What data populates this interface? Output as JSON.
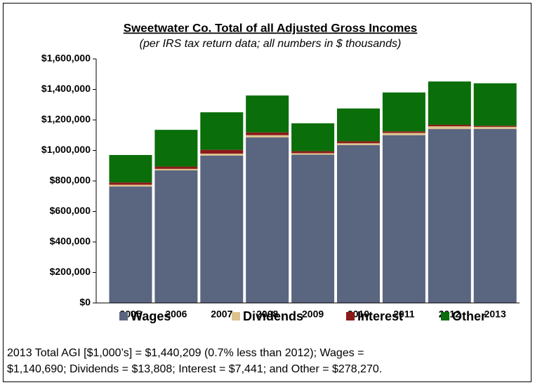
{
  "chart_data": {
    "type": "stacked_bar",
    "title": "Sweetwater Co. Total of all Adjusted Gross Incomes",
    "subtitle": "(per  IRS tax return data; all numbers in $ thousands)",
    "categories": [
      "2005",
      "2006",
      "2007",
      "2008",
      "2009",
      "2010",
      "2011",
      "2012",
      "2013"
    ],
    "series": [
      {
        "name": "Wages",
        "color": "#5a6580",
        "values": [
          763000,
          869000,
          966000,
          1085000,
          972000,
          1035000,
          1100000,
          1140000,
          1140690
        ]
      },
      {
        "name": "Dividends",
        "color": "#dcc28e",
        "values": [
          12000,
          10000,
          13000,
          15000,
          10000,
          12000,
          15000,
          18000,
          13808
        ]
      },
      {
        "name": "Interest",
        "color": "#8b1a1a",
        "values": [
          15000,
          15000,
          25000,
          18000,
          13000,
          13000,
          10000,
          10000,
          7441
        ]
      },
      {
        "name": "Other",
        "color": "#0a6e0a",
        "values": [
          180000,
          241000,
          246000,
          242000,
          183000,
          215000,
          255000,
          284000,
          278270
        ]
      }
    ],
    "ylim": [
      0,
      1600000
    ],
    "yticks": [
      {
        "value": 0,
        "label": "$0"
      },
      {
        "value": 200000,
        "label": "$200,000"
      },
      {
        "value": 400000,
        "label": "$400,000"
      },
      {
        "value": 600000,
        "label": "$600,000"
      },
      {
        "value": 800000,
        "label": "$800,000"
      },
      {
        "value": 1000000,
        "label": "$1,000,000"
      },
      {
        "value": 1200000,
        "label": "$1,200,000"
      },
      {
        "value": 1400000,
        "label": "$1,400,000"
      },
      {
        "value": 1600000,
        "label": "$1,600,000"
      }
    ],
    "note": [
      "2013 Total AGI [$1,000’s] = $1,440,209 (0.7% less than 2012); Wages =",
      "$1,140,690; Dividends = $13,808; Interest = $7,441; and Other = $278,270."
    ]
  }
}
